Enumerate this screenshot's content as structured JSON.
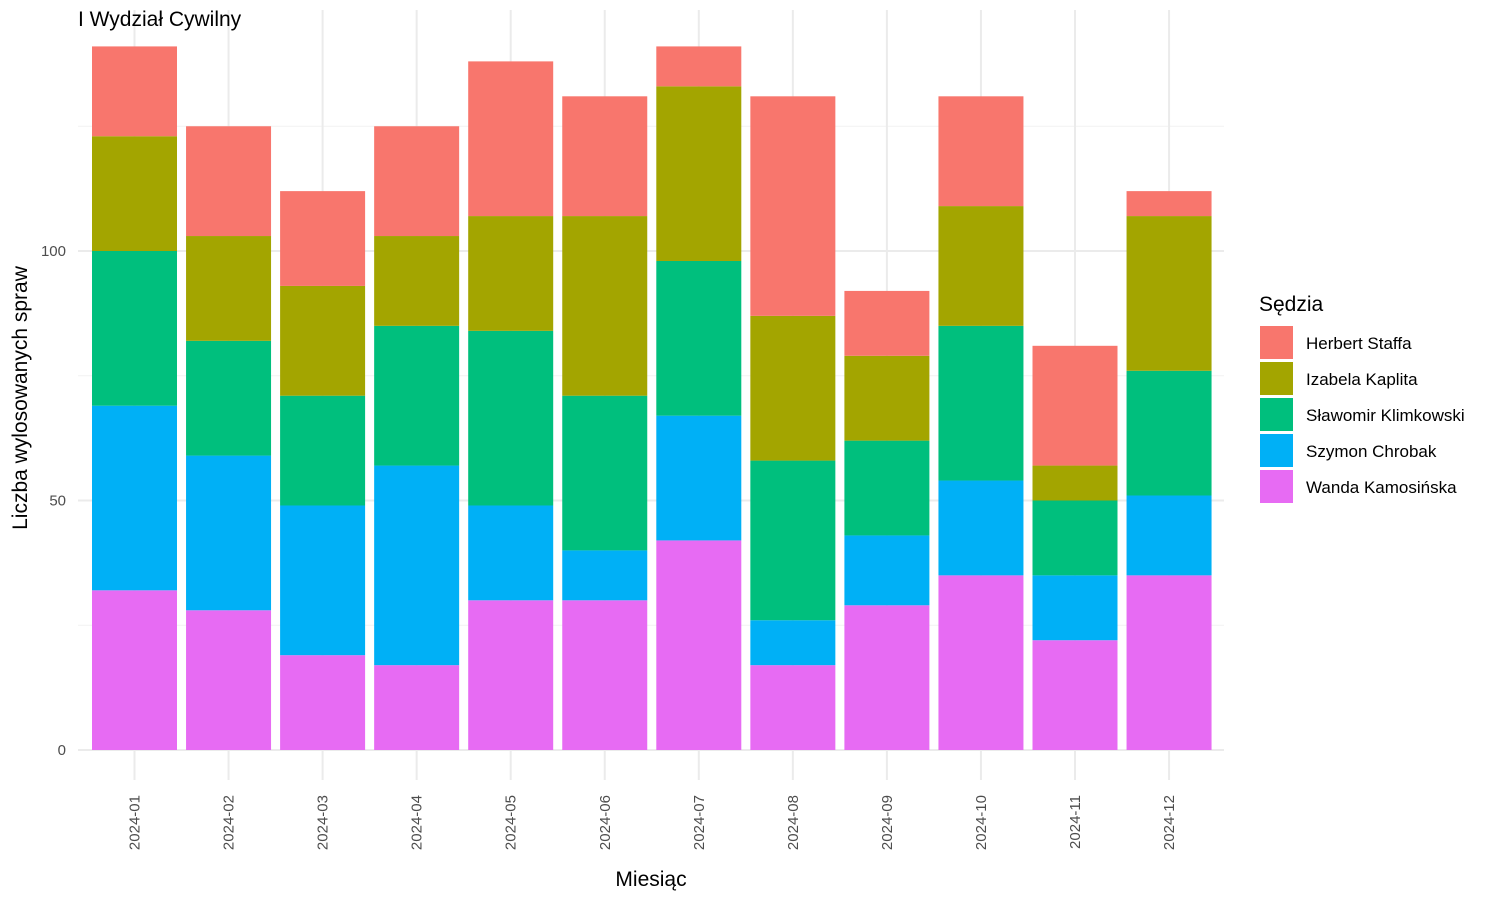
{
  "chart_data": {
    "type": "bar",
    "stacked": true,
    "title": "I Wydział Cywilny",
    "xlabel": "Miesiąc",
    "ylabel": "Liczba wylosowanych spraw",
    "ylim": [
      0,
      141
    ],
    "yticks": [
      0,
      50,
      100
    ],
    "grid": true,
    "legend_position": "right",
    "legend_title": "Sędzia",
    "categories": [
      "2024-01",
      "2024-02",
      "2024-03",
      "2024-04",
      "2024-05",
      "2024-06",
      "2024-07",
      "2024-08",
      "2024-09",
      "2024-10",
      "2024-11",
      "2024-12"
    ],
    "series": [
      {
        "name": "Wanda Kamosińska",
        "color": "#e76bf3",
        "values": [
          32,
          28,
          19,
          17,
          30,
          30,
          42,
          17,
          29,
          35,
          22,
          35
        ]
      },
      {
        "name": "Szymon Chrobak",
        "color": "#00b0f6",
        "values": [
          37,
          31,
          30,
          40,
          19,
          10,
          25,
          9,
          14,
          19,
          13,
          16
        ]
      },
      {
        "name": "Sławomir Klimkowski",
        "color": "#00bf7d",
        "values": [
          31,
          23,
          22,
          28,
          35,
          31,
          31,
          32,
          19,
          31,
          15,
          25
        ]
      },
      {
        "name": "Izabela Kaplita",
        "color": "#a3a500",
        "values": [
          23,
          21,
          22,
          18,
          23,
          36,
          35,
          29,
          17,
          24,
          7,
          31
        ]
      },
      {
        "name": "Herbert Staffa",
        "color": "#f8766d",
        "values": [
          18,
          22,
          19,
          22,
          31,
          24,
          8,
          44,
          13,
          22,
          24,
          5
        ]
      }
    ]
  }
}
